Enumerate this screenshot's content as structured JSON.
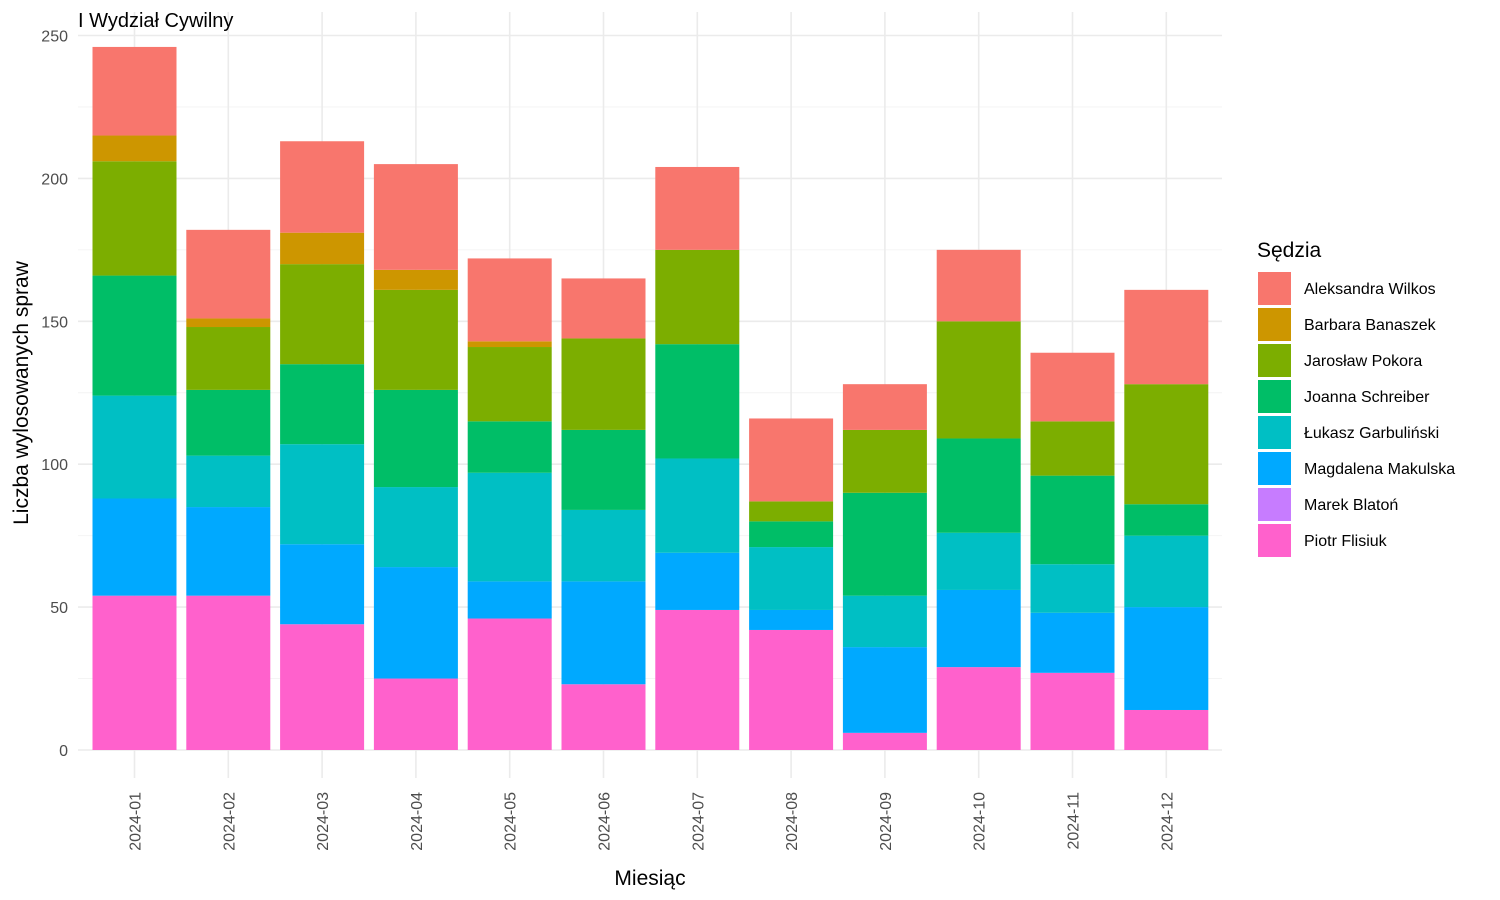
{
  "chart_data": {
    "type": "bar",
    "stacked": true,
    "title": "I Wydział Cywilny",
    "xlabel": "Miesiąc",
    "ylabel": "Liczba wylosowanych spraw",
    "ylim": [
      0,
      250
    ],
    "yticks": [
      0,
      50,
      100,
      150,
      200,
      250
    ],
    "grid": true,
    "legend": {
      "title": "Sędzia",
      "position": "right"
    },
    "categories": [
      "2024-01",
      "2024-02",
      "2024-03",
      "2024-04",
      "2024-05",
      "2024-06",
      "2024-07",
      "2024-08",
      "2024-09",
      "2024-10",
      "2024-11",
      "2024-12"
    ],
    "series": [
      {
        "name": "Aleksandra Wilkos",
        "color": "#F8766D",
        "values": [
          31,
          31,
          32,
          37,
          29,
          21,
          29,
          29,
          16,
          25,
          24,
          33
        ]
      },
      {
        "name": "Barbara Banaszek",
        "color": "#CD9600",
        "values": [
          9,
          3,
          11,
          7,
          2,
          0,
          0,
          0,
          0,
          0,
          0,
          0
        ]
      },
      {
        "name": "Jarosław Pokora",
        "color": "#7CAE00",
        "values": [
          40,
          22,
          35,
          35,
          26,
          32,
          33,
          7,
          22,
          41,
          19,
          42
        ]
      },
      {
        "name": "Joanna Schreiber",
        "color": "#00BE67",
        "values": [
          42,
          23,
          28,
          34,
          18,
          28,
          40,
          9,
          36,
          33,
          31,
          11
        ]
      },
      {
        "name": "Łukasz Garbuliński",
        "color": "#00BFC4",
        "values": [
          36,
          18,
          35,
          28,
          38,
          25,
          33,
          22,
          18,
          20,
          17,
          25
        ]
      },
      {
        "name": "Magdalena Makulska",
        "color": "#00A9FF",
        "values": [
          34,
          31,
          28,
          39,
          13,
          36,
          20,
          7,
          30,
          27,
          21,
          36
        ]
      },
      {
        "name": "Marek Blatoń",
        "color": "#C77CFF",
        "values": [
          0,
          0,
          0,
          0,
          0,
          0,
          0,
          0,
          0,
          0,
          0,
          0
        ]
      },
      {
        "name": "Piotr Flisiuk",
        "color": "#FF61CC",
        "values": [
          54,
          54,
          44,
          25,
          46,
          23,
          49,
          42,
          6,
          29,
          27,
          14
        ]
      }
    ]
  }
}
